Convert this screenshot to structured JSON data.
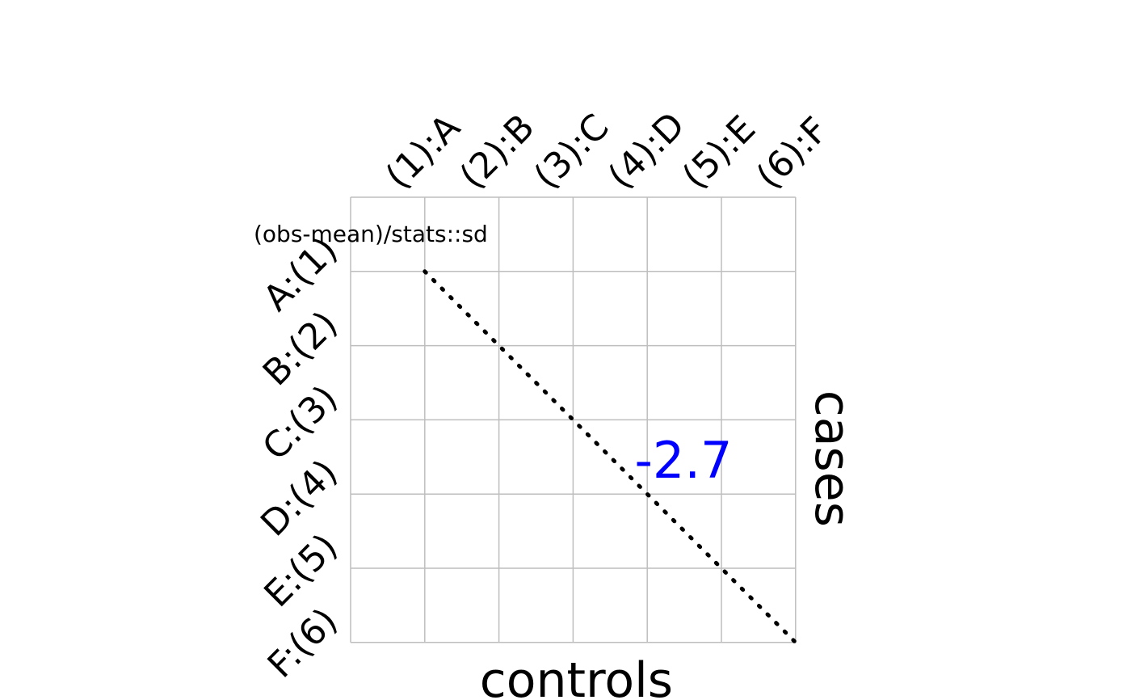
{
  "chart_data": {
    "type": "heatmap",
    "columns": [
      "(1):A",
      "(2):B",
      "(3):C",
      "(4):D",
      "(5):E",
      "(6):F"
    ],
    "rows": [
      "A:(1)",
      "B:(2)",
      "C:(3)",
      "D:(4)",
      "E:(5)",
      "F:(6)"
    ],
    "xlabel": "controls",
    "ylabel": "cases",
    "annotation": "(obs-mean)/stats::sd",
    "value_label": "-2.7",
    "value": -2.7,
    "grid": true,
    "diagonal": "dotted",
    "colors": {
      "grid": "#bebebe",
      "value_label": "#0000ff",
      "text": "#000000",
      "diagonal": "#000000"
    }
  }
}
